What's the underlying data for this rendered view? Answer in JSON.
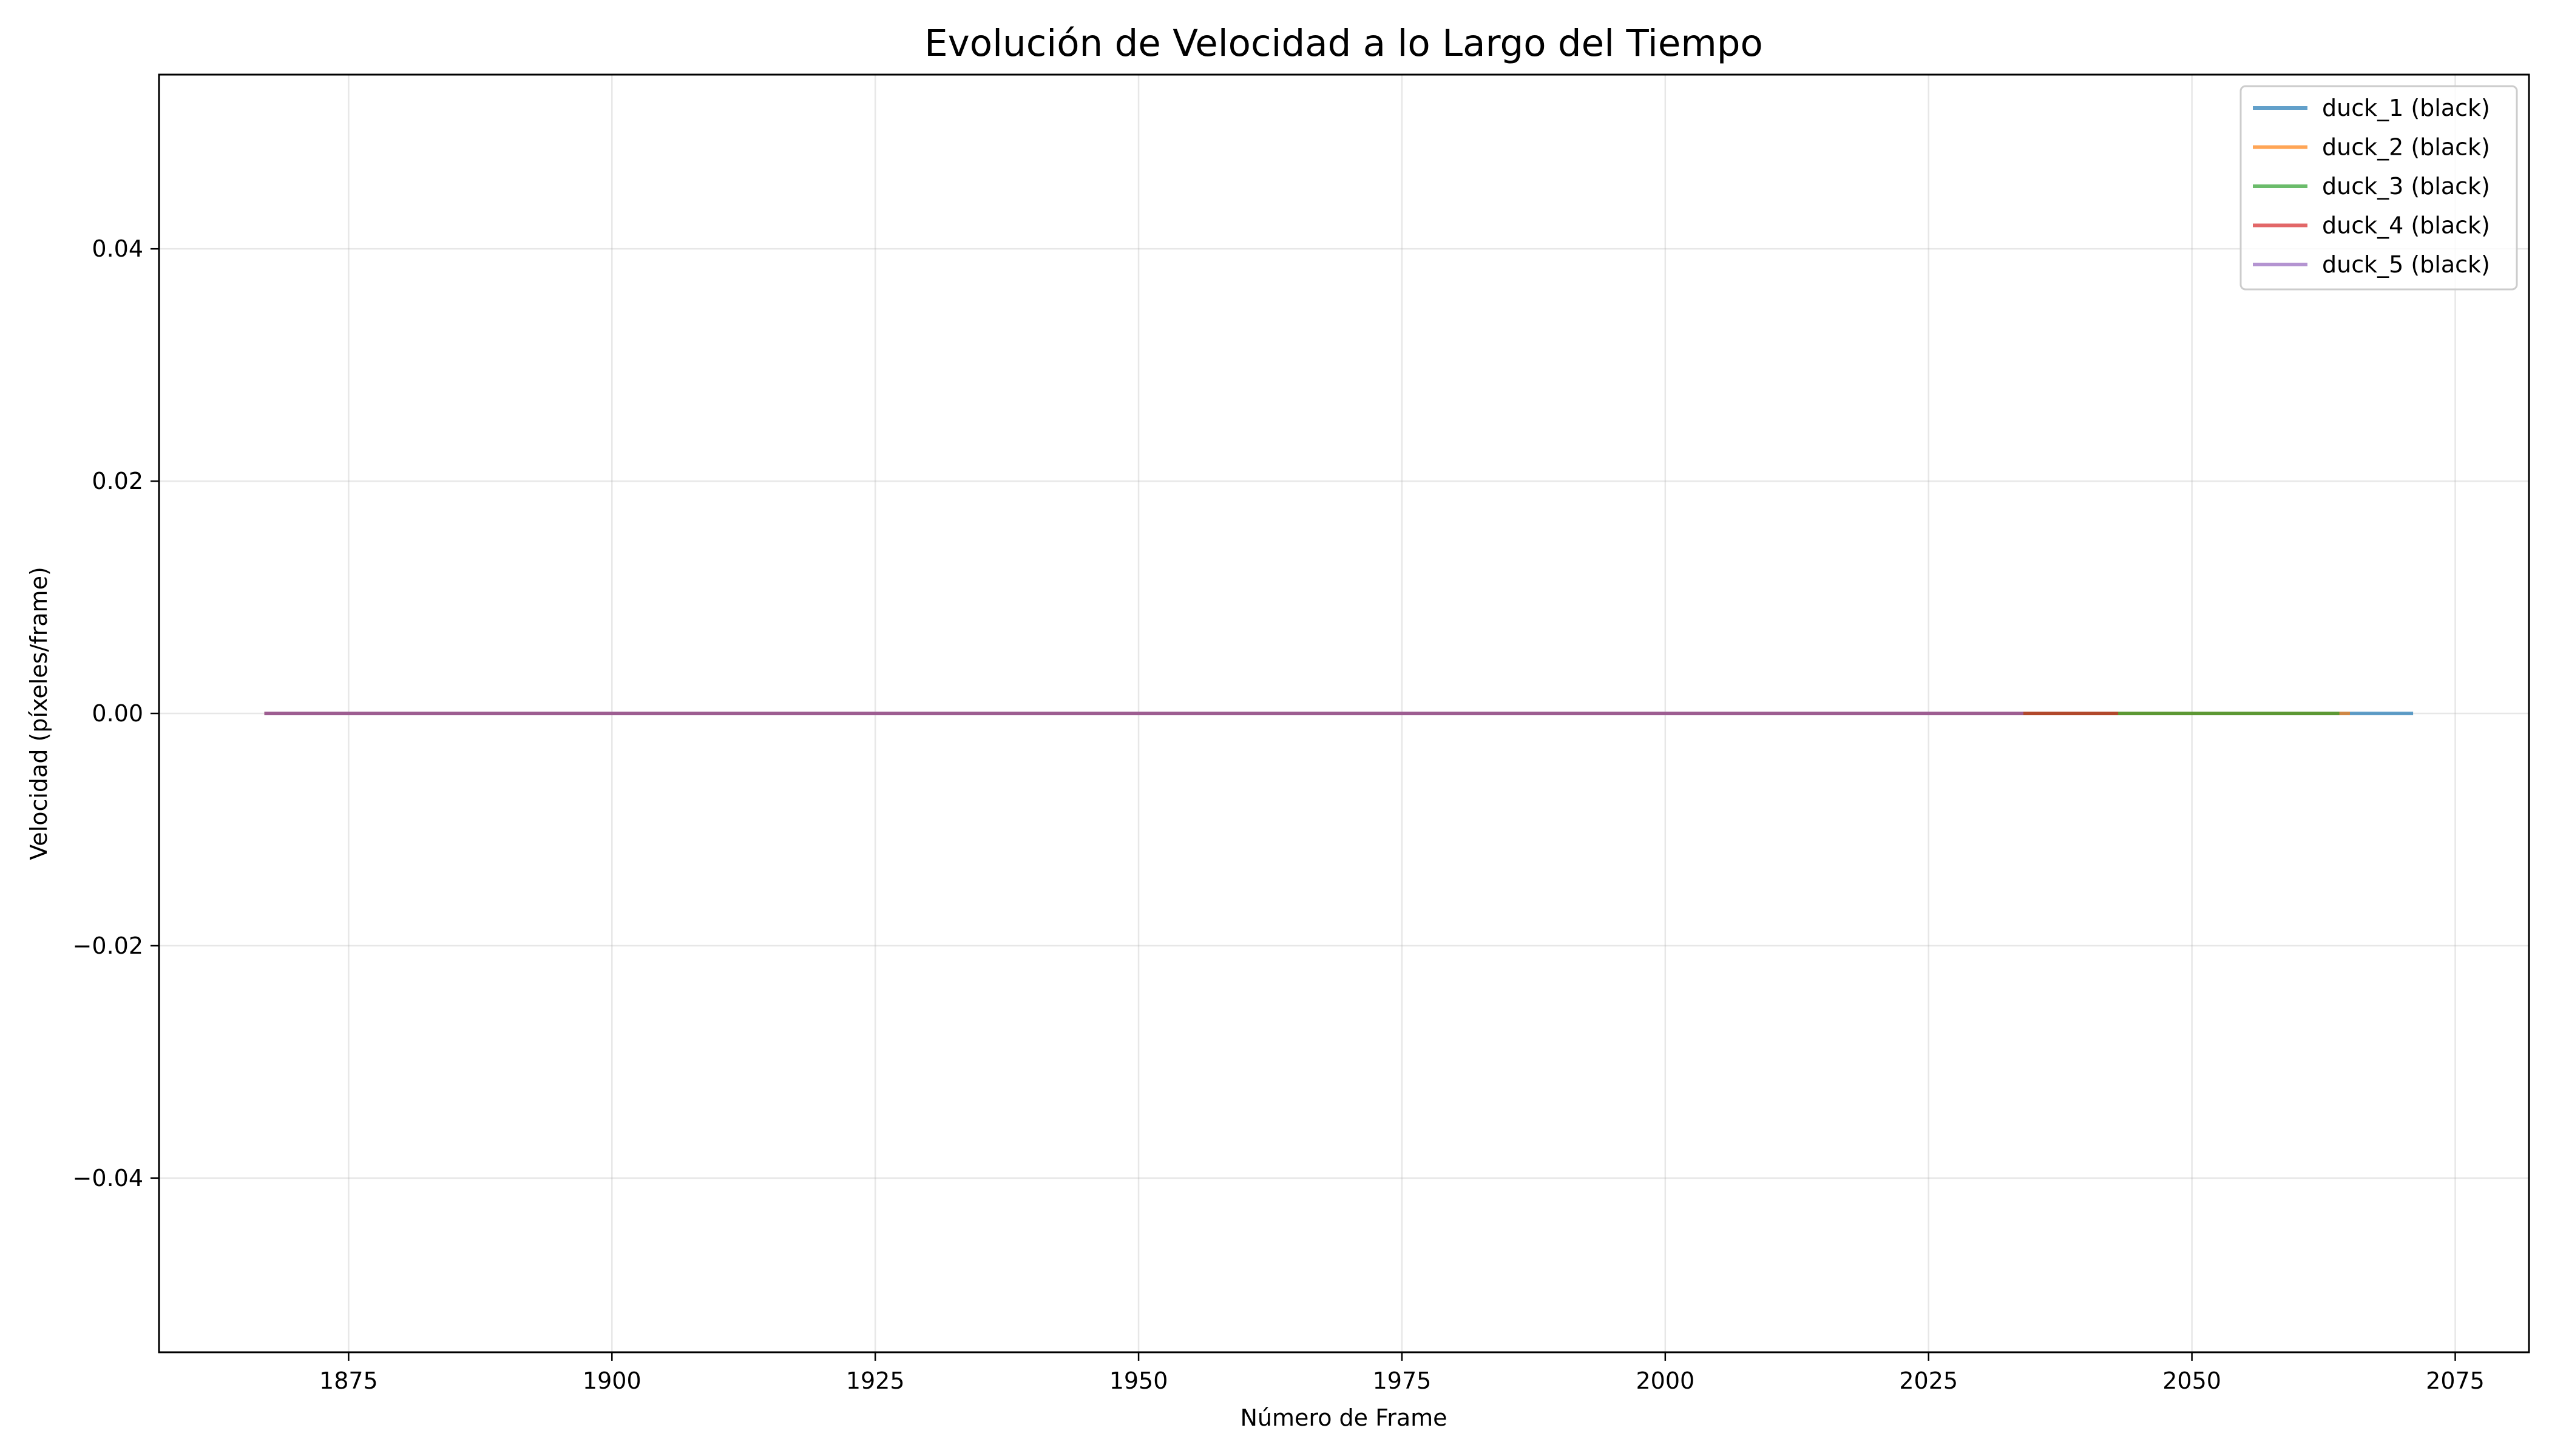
{
  "chart_data": {
    "type": "line",
    "title": "Evolución de Velocidad a lo Largo del Tiempo",
    "xlabel": "Número de Frame",
    "ylabel": "Velocidad (píxeles/frame)",
    "xlim": [
      1857,
      2082
    ],
    "ylim": [
      -0.055,
      0.055
    ],
    "x_ticks": [
      1875,
      1900,
      1925,
      1950,
      1975,
      2000,
      2025,
      2050,
      2075
    ],
    "x_tick_labels": [
      "1875",
      "1900",
      "1925",
      "1950",
      "1975",
      "2000",
      "2025",
      "2050",
      "2075"
    ],
    "y_ticks": [
      0.04,
      0.02,
      0.0,
      -0.02,
      -0.04
    ],
    "y_tick_labels": [
      "0.04",
      "0.02",
      "0.00",
      "−0.02",
      "−0.04"
    ],
    "grid": true,
    "legend_placement": "top-right",
    "series": [
      {
        "name": "duck_1 (black)",
        "color": "#1f77b4",
        "x": [
          1867,
          2071
        ],
        "values": [
          0,
          0
        ]
      },
      {
        "name": "duck_2 (black)",
        "color": "#ff7f0e",
        "x": [
          1867,
          2065
        ],
        "values": [
          0,
          0
        ]
      },
      {
        "name": "duck_3 (black)",
        "color": "#2ca02c",
        "x": [
          1867,
          2064
        ],
        "values": [
          0,
          0
        ]
      },
      {
        "name": "duck_4 (black)",
        "color": "#d62728",
        "x": [
          1867,
          2043
        ],
        "values": [
          0,
          0
        ]
      },
      {
        "name": "duck_5 (black)",
        "color": "#9467bd",
        "x": [
          1867,
          2034
        ],
        "values": [
          0,
          0
        ]
      }
    ]
  }
}
